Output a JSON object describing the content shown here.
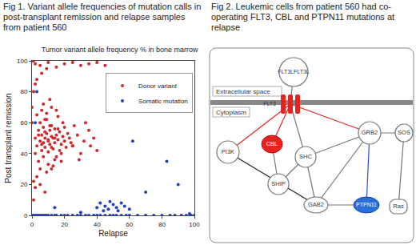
{
  "captions": [
    "Fig 1. Variant allele frequencies of mutation calls in post-transplant remission and relapse samples from patient 560",
    "Fig 2. Leukemic cells from patient 560 had co-operating FLT3, CBL and PTPN11 mutations at relapse"
  ],
  "chart_data": {
    "type": "scatter",
    "title": "Tumor variant allele frequency % in bone marrow",
    "x_label": "Relapse",
    "y_label": "Post transplant remission",
    "xlim": [
      0,
      100
    ],
    "ylim": [
      0,
      100
    ],
    "xticks": [
      0,
      20,
      40,
      60,
      80,
      100
    ],
    "yticks": [
      0,
      20,
      40,
      60,
      80,
      100
    ],
    "grid": false,
    "legend": "upper right",
    "marker": "circle",
    "series": [
      {
        "name": "Donor variant",
        "color": "#d62728",
        "x": [
          2,
          3,
          4,
          5,
          5,
          6,
          6,
          7,
          7,
          8,
          8,
          9,
          9,
          10,
          10,
          11,
          11,
          12,
          12,
          13,
          13,
          14,
          14,
          15,
          15,
          16,
          17,
          18,
          19,
          20,
          21,
          22,
          23,
          24,
          25,
          3,
          4,
          6,
          7,
          8,
          9,
          10,
          11,
          12,
          14,
          16,
          18,
          20,
          5,
          7,
          9,
          11,
          13,
          15,
          17,
          19,
          2,
          4,
          6,
          8,
          10,
          12,
          14,
          16,
          1,
          2,
          3,
          5,
          8,
          12,
          18,
          25,
          28,
          30,
          32,
          35,
          38,
          40,
          26,
          29,
          33,
          36,
          2,
          5,
          10,
          15,
          20,
          25,
          30,
          35,
          40,
          45,
          1,
          3,
          6,
          9,
          1,
          2,
          0,
          0,
          0,
          1
        ],
        "y": [
          50,
          45,
          55,
          48,
          60,
          42,
          52,
          47,
          57,
          50,
          44,
          53,
          62,
          49,
          41,
          55,
          46,
          51,
          58,
          43,
          50,
          47,
          56,
          52,
          38,
          49,
          54,
          46,
          51,
          48,
          44,
          53,
          50,
          47,
          45,
          65,
          35,
          68,
          38,
          62,
          66,
          33,
          58,
          70,
          36,
          64,
          40,
          57,
          30,
          72,
          28,
          75,
          32,
          68,
          42,
          60,
          40,
          52,
          46,
          54,
          48,
          44,
          50,
          56,
          22,
          18,
          25,
          20,
          15,
          30,
          35,
          45,
          52,
          40,
          48,
          55,
          50,
          42,
          58,
          36,
          60,
          45,
          98,
          97,
          99,
          96,
          98,
          99,
          97,
          98,
          99,
          97,
          100,
          88,
          92,
          95,
          80,
          85,
          70,
          60,
          100,
          10
        ]
      },
      {
        "name": "Somatic mutation",
        "color": "#1f3fbf",
        "x": [
          0,
          1,
          2,
          3,
          4,
          5,
          6,
          7,
          8,
          9,
          10,
          12,
          14,
          15,
          18,
          20,
          22,
          25,
          28,
          30,
          33,
          35,
          38,
          40,
          42,
          45,
          48,
          50,
          52,
          55,
          58,
          60,
          65,
          70,
          75,
          80,
          85,
          88,
          92,
          95,
          98,
          100,
          40,
          42,
          45,
          47,
          48,
          50,
          52,
          55,
          57,
          60,
          44,
          53,
          3,
          14,
          62,
          83,
          90,
          70,
          2,
          97,
          30
        ],
        "y": [
          0,
          0,
          0,
          0,
          0,
          0,
          0,
          0,
          0,
          0,
          0,
          0,
          0,
          0,
          0,
          0,
          0,
          0,
          0,
          0,
          0,
          0,
          0,
          0,
          0,
          0,
          0,
          0,
          0,
          0,
          0,
          0,
          0,
          0,
          0,
          0,
          0,
          0,
          0,
          0,
          0,
          0,
          5,
          8,
          6,
          4,
          9,
          7,
          5,
          8,
          6,
          4,
          3,
          3,
          80,
          5,
          48,
          35,
          20,
          15,
          60,
          1,
          2
        ]
      }
    ]
  },
  "diagram": {
    "regions": {
      "extracellular": "Extracellular space",
      "cytoplasm": "Cytoplasm"
    },
    "nodes": {
      "flt3l": {
        "label": "FLT3LFLT3L"
      },
      "flt3": {
        "label": "FLT3"
      },
      "pi3k": {
        "label": "PI3K"
      },
      "cbl": {
        "label": "CBL"
      },
      "shc": {
        "label": "SHC"
      },
      "ship": {
        "label": "SHIP"
      },
      "gab2": {
        "label": "GAB2"
      },
      "grb2": {
        "label": "GRB2"
      },
      "sos": {
        "label": "SOS"
      },
      "ptpn11": {
        "label": "PTPN11"
      },
      "ras": {
        "label": "Ras"
      }
    }
  }
}
